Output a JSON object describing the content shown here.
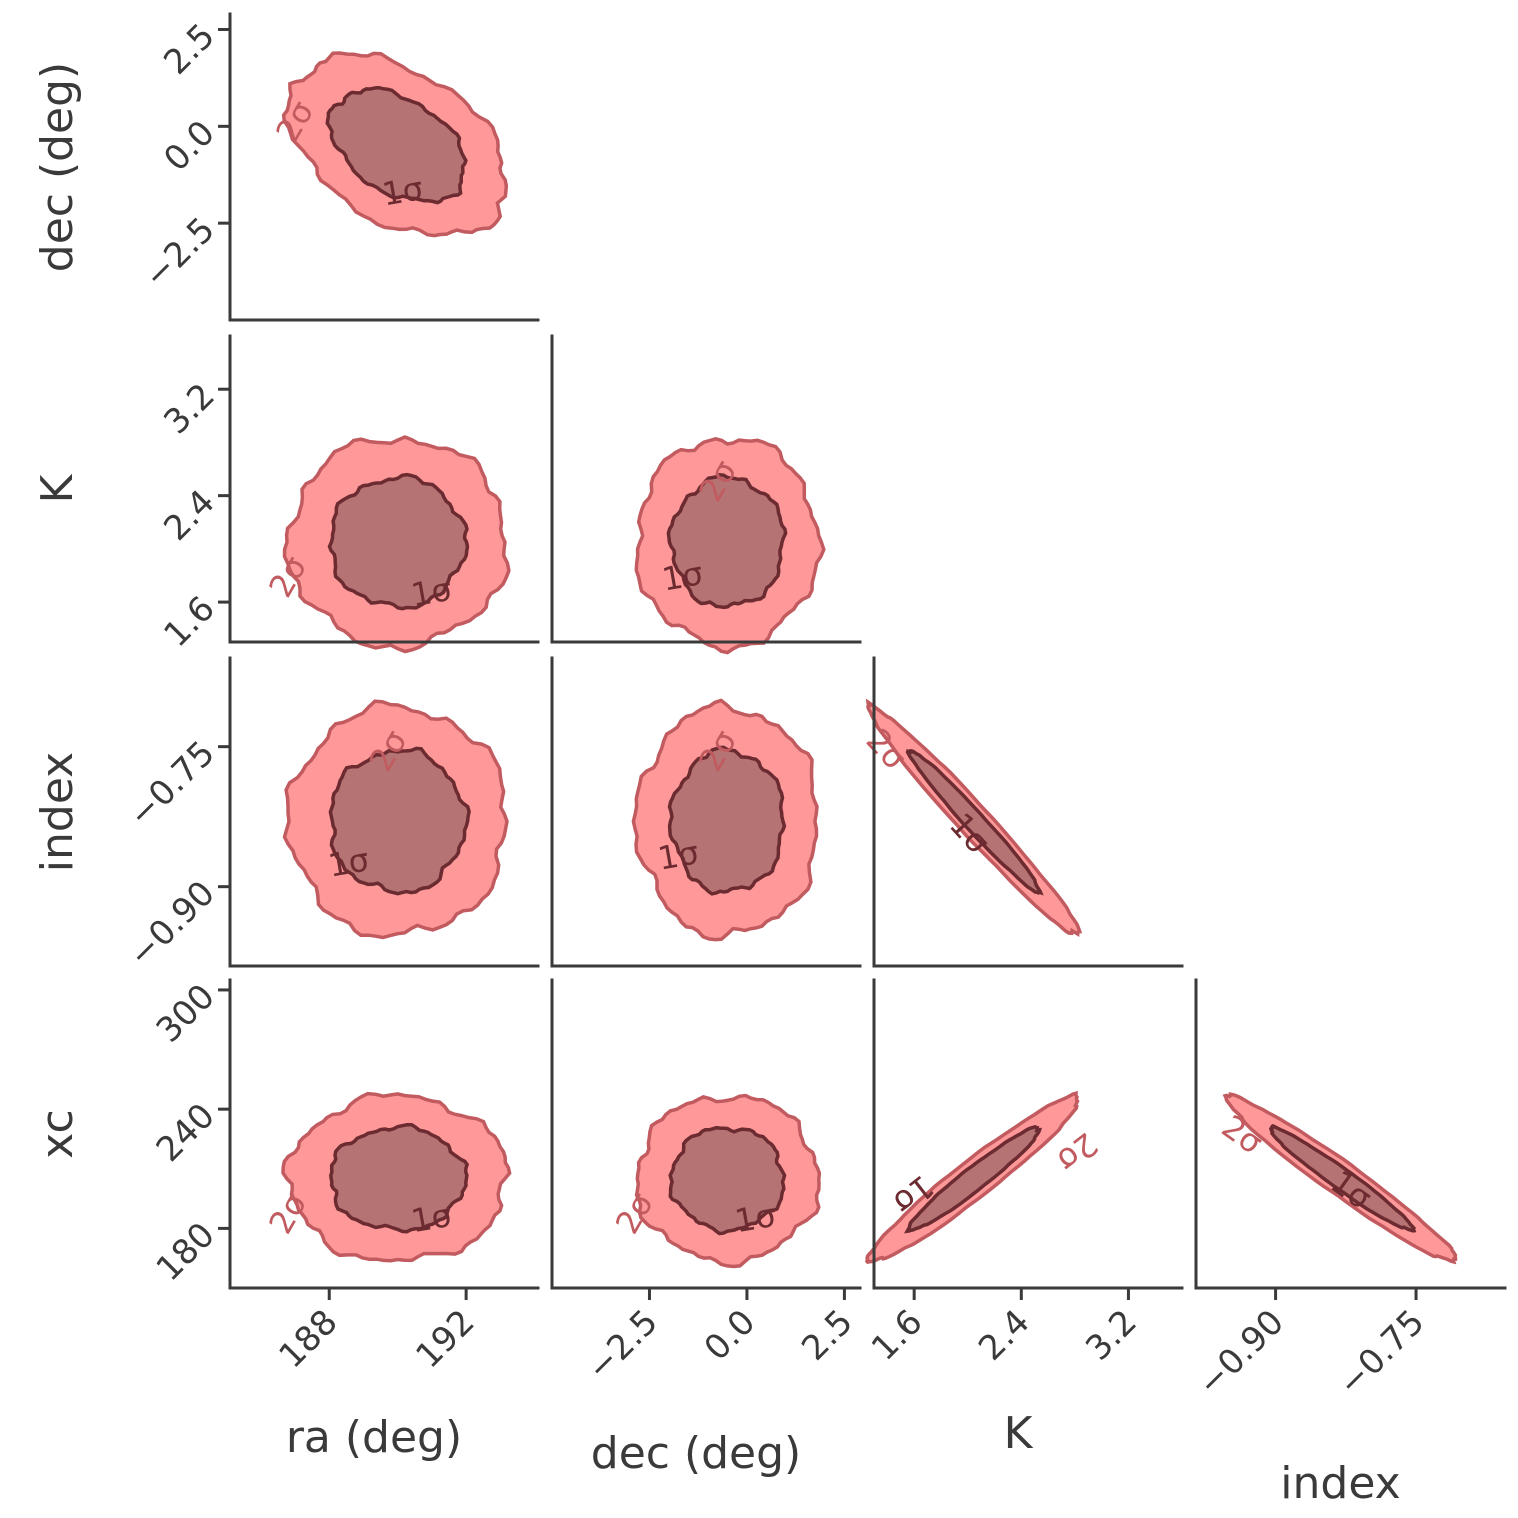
{
  "chart_data": {
    "type": "corner",
    "parameters": [
      "ra (deg)",
      "dec (deg)",
      "K",
      "index",
      "xc"
    ],
    "axes": {
      "ra (deg)": {
        "label": "ra (deg)",
        "ticks": [
          188,
          192
        ],
        "tick_labels": [
          "188",
          "192"
        ],
        "range": [
          185.1,
          194.1
        ]
      },
      "dec (deg)": {
        "label": "dec (deg)",
        "ticks": [
          -2.5,
          0.0,
          2.5
        ],
        "tick_labels": [
          "−2.5",
          "0.0",
          "2.5"
        ],
        "range": [
          -5.0,
          2.9
        ]
      },
      "K": {
        "label": "K",
        "ticks": [
          1.6,
          2.4,
          3.2
        ],
        "tick_labels": [
          "1.6",
          "2.4",
          "3.2"
        ],
        "range": [
          1.3,
          3.6
        ]
      },
      "index": {
        "label": "index",
        "ticks": [
          -0.9,
          -0.75
        ],
        "tick_labels": [
          "−0.90",
          "−0.75"
        ],
        "range": [
          -0.985,
          -0.655
        ]
      },
      "xc": {
        "label": "xc",
        "ticks": [
          180,
          240,
          300
        ],
        "tick_labels": [
          "180",
          "240",
          "300"
        ],
        "range": [
          150,
          305
        ]
      }
    },
    "panels": [
      {
        "x": "ra (deg)",
        "y": "dec (deg)",
        "center": [
          190.0,
          -0.5
        ],
        "sigma": [
          1.3,
          0.95
        ],
        "corr": -0.4,
        "contour_labels": [
          "1σ",
          "2σ"
        ]
      },
      {
        "x": "ra (deg)",
        "y": "K",
        "center": [
          190.0,
          2.05
        ],
        "sigma": [
          1.3,
          0.32
        ],
        "corr": 0.0,
        "contour_labels": [
          "1σ",
          "2σ"
        ]
      },
      {
        "x": "dec (deg)",
        "y": "K",
        "center": [
          -0.5,
          2.05
        ],
        "sigma": [
          0.95,
          0.32
        ],
        "corr": 0.0,
        "contour_labels": [
          "1σ",
          "2σ"
        ]
      },
      {
        "x": "ra (deg)",
        "y": "index",
        "center": [
          190.0,
          -0.83
        ],
        "sigma": [
          1.3,
          0.05
        ],
        "corr": 0.0,
        "contour_labels": [
          "1σ",
          "2σ"
        ]
      },
      {
        "x": "dec (deg)",
        "y": "index",
        "center": [
          -0.5,
          -0.83
        ],
        "sigma": [
          0.95,
          0.05
        ],
        "corr": 0.0,
        "contour_labels": [
          "1σ",
          "2σ"
        ]
      },
      {
        "x": "K",
        "y": "index",
        "center": [
          2.05,
          -0.83
        ],
        "sigma": [
          0.32,
          0.05
        ],
        "corr": -0.98,
        "contour_labels": [
          "1σ",
          "2σ"
        ]
      },
      {
        "x": "ra (deg)",
        "y": "xc",
        "center": [
          190.0,
          205
        ],
        "sigma": [
          1.3,
          17
        ],
        "corr": 0.0,
        "contour_labels": [
          "1σ",
          "2σ"
        ]
      },
      {
        "x": "dec (deg)",
        "y": "xc",
        "center": [
          -0.5,
          205
        ],
        "sigma": [
          0.95,
          17
        ],
        "corr": 0.0,
        "contour_labels": [
          "1σ",
          "2σ"
        ]
      },
      {
        "x": "K",
        "y": "xc",
        "center": [
          2.05,
          205
        ],
        "sigma": [
          0.32,
          17
        ],
        "corr": 0.96,
        "contour_labels": [
          "1σ",
          "2σ"
        ]
      },
      {
        "x": "index",
        "y": "xc",
        "center": [
          -0.83,
          205
        ],
        "sigma": [
          0.05,
          17
        ],
        "corr": -0.97,
        "contour_labels": [
          "1σ",
          "2σ"
        ]
      }
    ],
    "colors": {
      "outer_fill": "#ff9999",
      "inner_fill": "#b57373",
      "outer_line": "#c25b60",
      "inner_line": "#6b2b30",
      "axis": "#3a3a3a"
    },
    "grid": false,
    "legend": "none"
  }
}
